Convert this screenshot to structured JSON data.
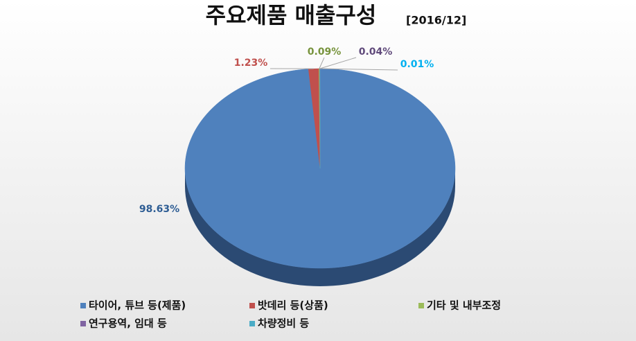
{
  "chart_data": {
    "type": "pie",
    "title": "주요제품 매출구성",
    "subtitle": "[2016/12]",
    "categories": [
      "타이어, 튜브 등(제품)",
      "밧데리 등(상품)",
      "기타 및 내부조정",
      "연구용역, 임대 등",
      "차량정비 등"
    ],
    "values": [
      98.63,
      1.23,
      0.09,
      0.04,
      0.01
    ],
    "value_labels": [
      "98.63%",
      "1.23%",
      "0.09%",
      "0.04%",
      "0.01%"
    ],
    "colors": [
      "#4f81bd",
      "#c0504d",
      "#9bbb59",
      "#8064a2",
      "#4bacc6"
    ],
    "label_colors": [
      "#2e5d94",
      "#c0504d",
      "#77933c",
      "#604a7b",
      "#00b0f0"
    ],
    "legend": "bottom"
  }
}
